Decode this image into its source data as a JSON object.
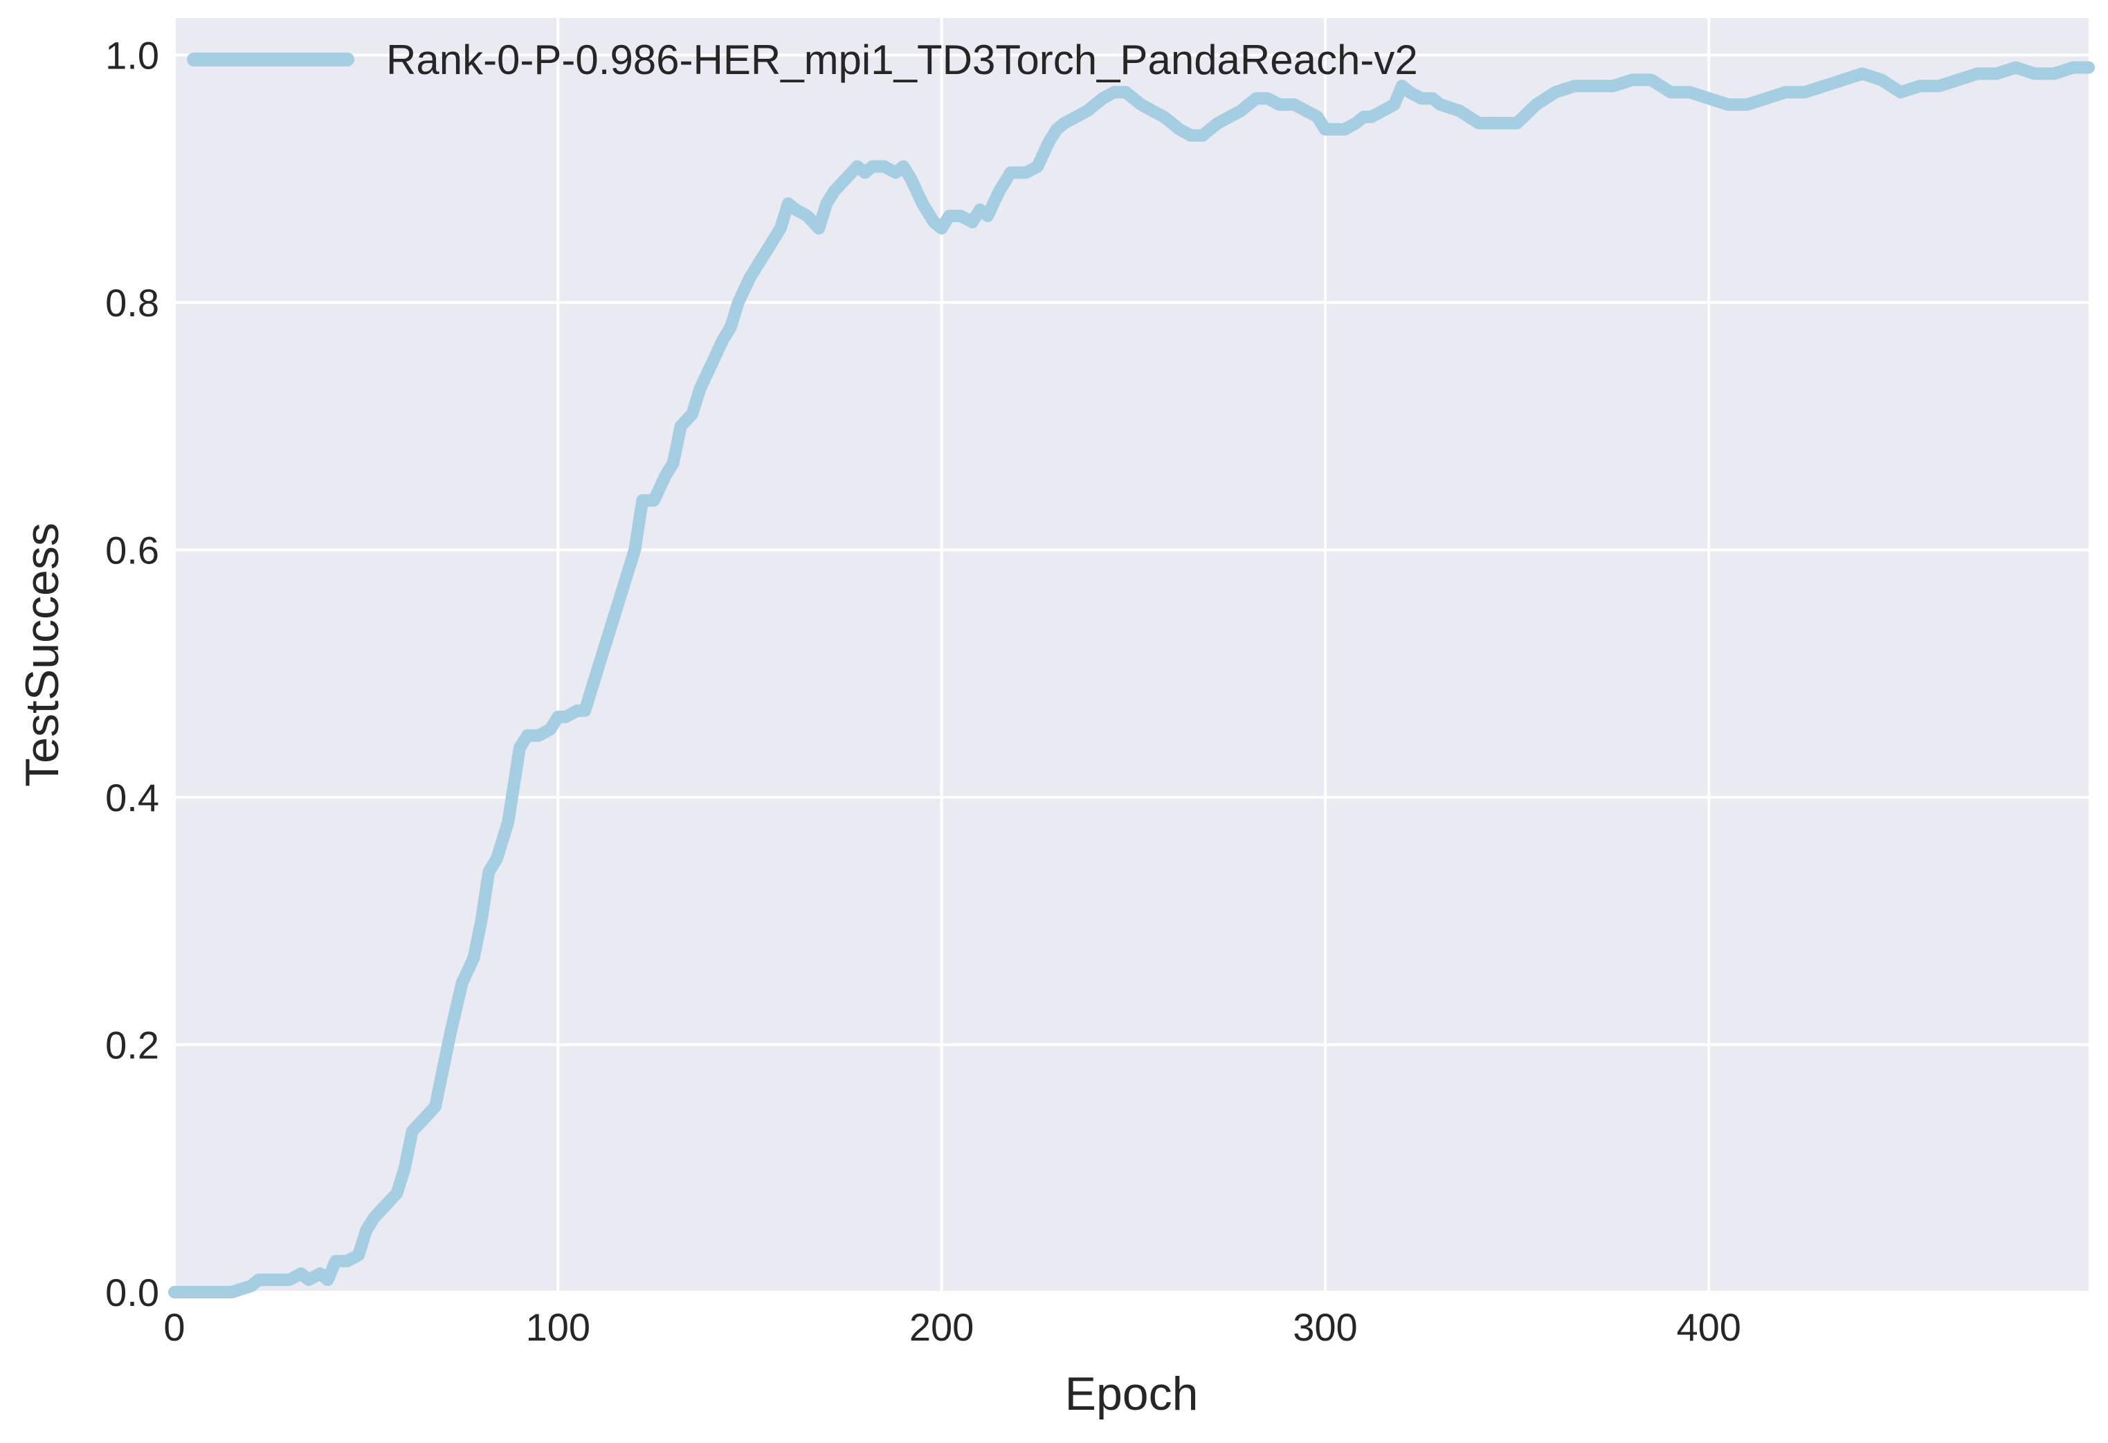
{
  "chart_data": {
    "type": "line",
    "xlabel": "Epoch",
    "ylabel": "TestSuccess",
    "xlim": [
      0,
      499
    ],
    "ylim": [
      0.0,
      1.03
    ],
    "xticks": [
      0,
      100,
      200,
      300,
      400
    ],
    "xtick_labels": [
      "0",
      "100",
      "200",
      "300",
      "400"
    ],
    "yticks": [
      0.0,
      0.2,
      0.4,
      0.6,
      0.8,
      1.0
    ],
    "ytick_labels": [
      "0.0",
      "0.2",
      "0.4",
      "0.6",
      "0.8",
      "1.0"
    ],
    "grid": true,
    "legend_position": "top-left",
    "colors": {
      "background": "#eaeaf2",
      "grid": "#ffffff",
      "line": "#a6cee3",
      "text": "#262626"
    },
    "series": [
      {
        "name": "Rank-0-P-0.986-HER_mpi1_TD3Torch_PandaReach-v2",
        "x": [
          0,
          5,
          10,
          15,
          20,
          22,
          25,
          30,
          33,
          35,
          38,
          40,
          42,
          45,
          48,
          50,
          52,
          55,
          58,
          60,
          62,
          65,
          68,
          70,
          72,
          75,
          78,
          80,
          82,
          84,
          85,
          87,
          90,
          92,
          95,
          98,
          100,
          102,
          105,
          107,
          110,
          112,
          115,
          118,
          120,
          122,
          125,
          128,
          130,
          132,
          135,
          137,
          140,
          143,
          145,
          147,
          150,
          152,
          155,
          158,
          160,
          162,
          165,
          168,
          170,
          172,
          175,
          178,
          180,
          182,
          185,
          188,
          190,
          192,
          195,
          198,
          200,
          202,
          205,
          208,
          210,
          212,
          215,
          218,
          220,
          222,
          225,
          228,
          230,
          232,
          235,
          238,
          240,
          242,
          245,
          248,
          250,
          252,
          255,
          258,
          260,
          262,
          265,
          268,
          270,
          272,
          275,
          278,
          280,
          282,
          285,
          288,
          290,
          292,
          295,
          298,
          300,
          302,
          305,
          308,
          310,
          312,
          315,
          318,
          320,
          322,
          325,
          328,
          330,
          335,
          340,
          345,
          350,
          355,
          360,
          365,
          370,
          375,
          380,
          385,
          390,
          395,
          400,
          405,
          410,
          415,
          420,
          425,
          430,
          435,
          440,
          445,
          450,
          455,
          460,
          465,
          470,
          475,
          480,
          485,
          490,
          495,
          499
        ],
        "y": [
          0.0,
          0.0,
          0.0,
          0.0,
          0.005,
          0.01,
          0.01,
          0.01,
          0.015,
          0.01,
          0.015,
          0.01,
          0.025,
          0.025,
          0.03,
          0.05,
          0.06,
          0.07,
          0.08,
          0.1,
          0.13,
          0.14,
          0.15,
          0.18,
          0.21,
          0.25,
          0.27,
          0.3,
          0.34,
          0.35,
          0.36,
          0.38,
          0.44,
          0.45,
          0.45,
          0.455,
          0.465,
          0.465,
          0.47,
          0.47,
          0.5,
          0.52,
          0.55,
          0.58,
          0.6,
          0.64,
          0.64,
          0.66,
          0.67,
          0.7,
          0.71,
          0.73,
          0.75,
          0.77,
          0.78,
          0.8,
          0.82,
          0.83,
          0.845,
          0.86,
          0.88,
          0.875,
          0.87,
          0.86,
          0.88,
          0.89,
          0.9,
          0.91,
          0.905,
          0.91,
          0.91,
          0.905,
          0.91,
          0.9,
          0.88,
          0.865,
          0.86,
          0.87,
          0.87,
          0.865,
          0.875,
          0.87,
          0.89,
          0.905,
          0.905,
          0.905,
          0.91,
          0.93,
          0.94,
          0.945,
          0.95,
          0.955,
          0.96,
          0.965,
          0.97,
          0.97,
          0.965,
          0.96,
          0.955,
          0.95,
          0.945,
          0.94,
          0.935,
          0.935,
          0.94,
          0.945,
          0.95,
          0.955,
          0.96,
          0.965,
          0.965,
          0.96,
          0.96,
          0.96,
          0.955,
          0.95,
          0.94,
          0.94,
          0.94,
          0.945,
          0.95,
          0.95,
          0.955,
          0.96,
          0.975,
          0.97,
          0.965,
          0.965,
          0.96,
          0.955,
          0.945,
          0.945,
          0.945,
          0.96,
          0.97,
          0.975,
          0.975,
          0.975,
          0.98,
          0.98,
          0.97,
          0.97,
          0.965,
          0.96,
          0.96,
          0.965,
          0.97,
          0.97,
          0.975,
          0.98,
          0.985,
          0.98,
          0.97,
          0.975,
          0.975,
          0.98,
          0.985,
          0.985,
          0.99,
          0.985,
          0.985,
          0.99,
          0.99
        ]
      }
    ]
  }
}
